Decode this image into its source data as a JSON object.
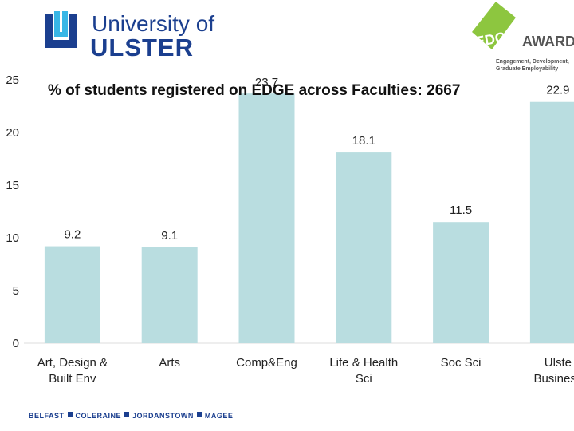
{
  "header": {
    "logo_line1": "University of",
    "logo_line2": "ULSTER",
    "award_logo_word1": "EDGE",
    "award_logo_word2": "AWARD",
    "award_tagline_1": "Engagement, Development,",
    "award_tagline_2": "Graduate Employability"
  },
  "footer": {
    "campuses": [
      "BELFAST",
      "COLERAINE",
      "JORDANSTOWN",
      "MAGEE"
    ]
  },
  "colors": {
    "bar": "#b9dde0",
    "brand_blue": "#1b3f8f",
    "award_green": "#8dc63f"
  },
  "chart_data": {
    "type": "bar",
    "title": "% of students registered on EDGE across Faculties: 2667",
    "categories": [
      [
        "Art, Design &",
        "Built Env"
      ],
      [
        "Arts"
      ],
      [
        "Comp&Eng"
      ],
      [
        "Life & Health",
        "Sci"
      ],
      [
        "Soc Sci"
      ],
      [
        "Ulste",
        "Business"
      ]
    ],
    "values": [
      9.2,
      9.1,
      23.7,
      18.1,
      11.5,
      22.9
    ],
    "data_labels": [
      "9.2",
      "9.1",
      "23.7",
      "18.1",
      "11.5",
      "22.9"
    ],
    "y_ticks": [
      "0",
      "5",
      "10",
      "15",
      "20",
      "25"
    ],
    "ylim": [
      0,
      25
    ],
    "grid": false,
    "legend": "none"
  }
}
